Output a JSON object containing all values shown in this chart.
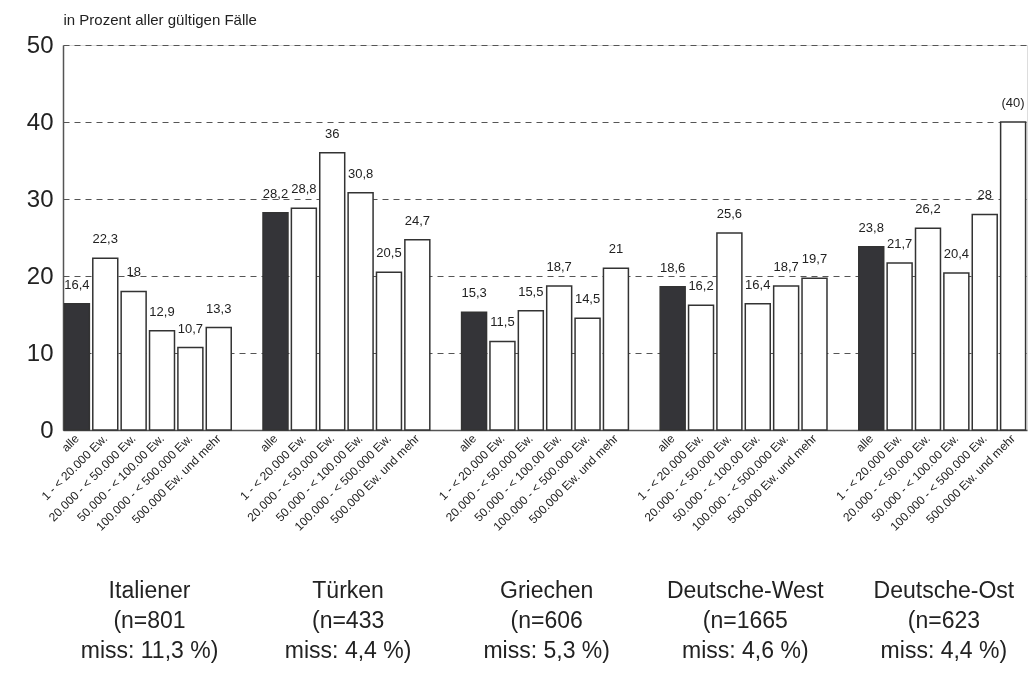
{
  "chart_data": {
    "type": "bar",
    "ylabel": "in Prozent aller gültigen Fälle",
    "categories": [
      "alle",
      "1 - < 20.000 Ew.",
      "20.000 - < 50.000 Ew.",
      "50.000 - < 100.00 Ew.",
      "100.000 - < 500.000 Ew.",
      "500.000 Ew. und mehr",
      "alle",
      "1 - < 20.000 Ew.",
      "20.000 - < 50.000 Ew.",
      "50.000 - < 100.00 Ew.",
      "100.000 - < 500.000 Ew.",
      "500.000 Ew. und mehr",
      "alle",
      "1 - < 20.000 Ew.",
      "20.000 - < 50.000 Ew.",
      "50.000 - < 100.00 Ew.",
      "100.000 - < 500.000 Ew.",
      "500.000 Ew. und mehr",
      "alle",
      "1 - < 20.000 Ew.",
      "20.000 - < 50.000 Ew.",
      "50.000 - < 100.00 Ew.",
      "100.000 - < 500.000 Ew.",
      "500.000 Ew. und mehr",
      "alle",
      "1 - < 20.000 Ew.",
      "20.000 - < 50.000 Ew.",
      "50.000 - < 100.00 Ew.",
      "100.000 - < 500.000 Ew.",
      "500.000 Ew. und mehr"
    ],
    "values": [
      16.4,
      22.3,
      18,
      12.9,
      10.7,
      13.3,
      28.2,
      28.8,
      36,
      30.8,
      20.5,
      24.7,
      15.3,
      11.5,
      15.5,
      18.7,
      14.5,
      21,
      18.6,
      16.2,
      25.6,
      16.4,
      18.7,
      19.7,
      23.8,
      21.7,
      26.2,
      20.4,
      28,
      40
    ],
    "value_labels": [
      "16,4",
      "22,3",
      "18",
      "12,9",
      "10,7",
      "13,3",
      "28,2",
      "28,8",
      "36",
      "30,8",
      "20,5",
      "24,7",
      "15,3",
      "11,5",
      "15,5",
      "18,7",
      "14,5",
      "21",
      "18,6",
      "16,2",
      "25,6",
      "16,4",
      "18,7",
      "19,7",
      "23,8",
      "21,7",
      "26,2",
      "20,4",
      "28",
      "(40)"
    ],
    "colors": [
      "#343438",
      "#ffffff",
      "#ffffff",
      "#ffffff",
      "#ffffff",
      "#ffffff",
      "#343438",
      "#ffffff",
      "#ffffff",
      "#ffffff",
      "#ffffff",
      "#ffffff",
      "#343438",
      "#ffffff",
      "#ffffff",
      "#ffffff",
      "#ffffff",
      "#ffffff",
      "#343438",
      "#ffffff",
      "#ffffff",
      "#ffffff",
      "#ffffff",
      "#ffffff",
      "#343438",
      "#ffffff",
      "#ffffff",
      "#ffffff",
      "#ffffff",
      "#ffffff"
    ],
    "annotations": [
      "Italiener\n(n=801\nmiss: 11,3 %)",
      "Türken\n(n=433\nmiss: 4,4 %)",
      "Griechen\n(n=606\nmiss: 5,3 %)",
      "Deutsche-West\n(n=1665\nmiss: 4,6 %)",
      "Deutsche-Ost\n(n=623\nmiss: 4,4 %)"
    ],
    "ylim": [
      0,
      50
    ],
    "yticks": [
      0,
      10,
      20,
      30,
      40,
      50
    ],
    "grid": "y"
  }
}
